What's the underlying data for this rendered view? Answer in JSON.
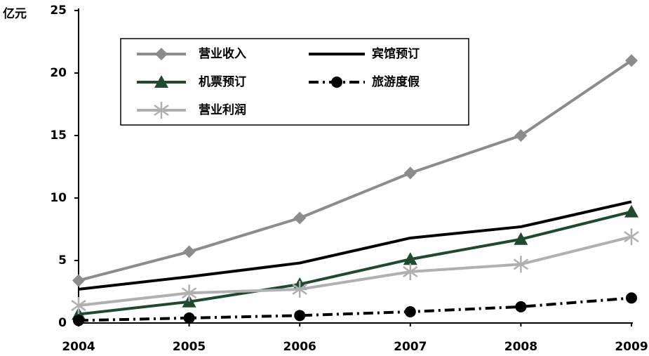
{
  "chart_data": {
    "type": "line",
    "y_label": "亿元",
    "x": [
      2004,
      2005,
      2006,
      2007,
      2008,
      2009
    ],
    "xlim": [
      2004,
      2009
    ],
    "xticks": [
      2004,
      2005,
      2006,
      2007,
      2008,
      2009
    ],
    "ylim": [
      0,
      25
    ],
    "yticks": [
      0,
      5,
      10,
      15,
      20,
      25
    ],
    "grid": false,
    "series": [
      {
        "name": "营业收入",
        "color": "#8c8c8c",
        "marker": "diamond",
        "dash": "solid",
        "values": [
          3.4,
          5.7,
          8.4,
          12,
          15,
          21
        ]
      },
      {
        "name": "宾馆预订",
        "color": "#000000",
        "marker": "none",
        "dash": "solid",
        "values": [
          2.7,
          3.7,
          4.8,
          6.8,
          7.7,
          9.7
        ]
      },
      {
        "name": "机票预订",
        "color": "#1f4a2e",
        "marker": "triangle",
        "dash": "solid",
        "values": [
          0.7,
          1.7,
          3.1,
          5.1,
          6.7,
          8.9
        ]
      },
      {
        "name": "旅游度假",
        "color": "#000000",
        "marker": "circle",
        "dash": "dashdot",
        "values": [
          0.2,
          0.4,
          0.6,
          0.9,
          1.3,
          2.0
        ]
      },
      {
        "name": "营业利润",
        "color": "#b0b0b0",
        "marker": "asterisk",
        "dash": "solid",
        "values": [
          1.4,
          2.4,
          2.7,
          4.1,
          4.7,
          6.9
        ]
      }
    ]
  }
}
